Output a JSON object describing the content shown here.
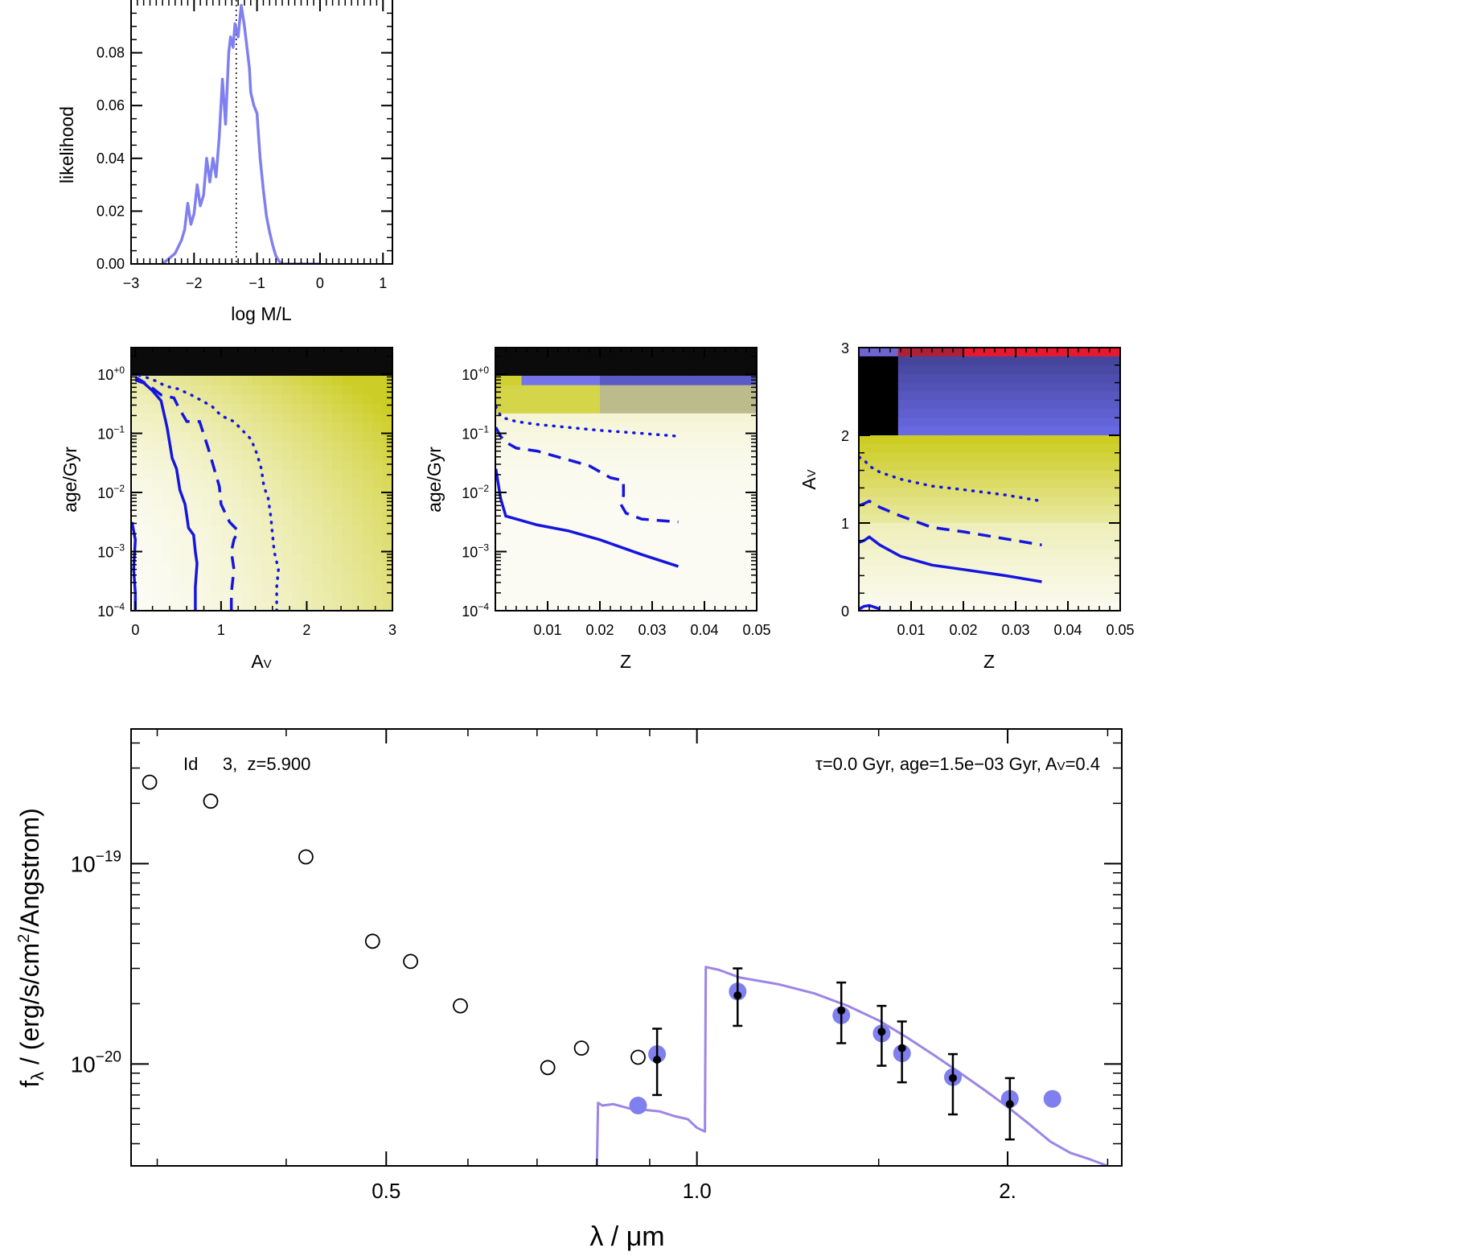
{
  "colors": {
    "pdf_line": "#7f7fef",
    "contour": "#1515df",
    "model_sed": "#9c85e6",
    "model_points": "#7f7fef",
    "observed": "#000000",
    "heat_light": "#fbfbf3",
    "heat_yellow": "#c8c810",
    "heat_blue": "#6a6ae6",
    "heat_red": "#e8182e",
    "heat_black": "#0b0b0b"
  },
  "chart_data": [
    {
      "type": "line",
      "id": "mlpdf",
      "xlabel": "log M/L",
      "ylabel": "likelihood",
      "xlim": [
        -3,
        1.15
      ],
      "ylim": [
        0,
        0.1
      ],
      "xticks": [
        "−3",
        "−2",
        "−1",
        "0",
        "1"
      ],
      "xtick_values": [
        -3,
        -2,
        -1,
        0,
        1
      ],
      "yticks": [
        "0.00",
        "0.02",
        "0.04",
        "0.06",
        "0.08"
      ],
      "ytick_values": [
        0,
        0.02,
        0.04,
        0.06,
        0.08
      ],
      "dotted_marker_x": -1.33,
      "series": [
        {
          "x": [
            -2.5,
            -2.4,
            -2.3,
            -2.2,
            -2.15,
            -2.1,
            -2.05,
            -2.0,
            -1.95,
            -1.9,
            -1.85,
            -1.8,
            -1.75,
            -1.7,
            -1.65,
            -1.6,
            -1.55,
            -1.5,
            -1.45,
            -1.42,
            -1.38,
            -1.35,
            -1.3,
            -1.25,
            -1.2,
            -1.15,
            -1.12,
            -1.1,
            -1.05,
            -1.0,
            -0.95,
            -0.9,
            -0.85,
            -0.8,
            -0.75,
            -0.7,
            -0.65,
            -0.6,
            -0.5,
            -0.3,
            0.0
          ],
          "y": [
            0.0,
            0.002,
            0.004,
            0.009,
            0.013,
            0.023,
            0.015,
            0.019,
            0.03,
            0.022,
            0.026,
            0.04,
            0.031,
            0.04,
            0.033,
            0.048,
            0.07,
            0.053,
            0.08,
            0.086,
            0.082,
            0.091,
            0.086,
            0.098,
            0.09,
            0.08,
            0.074,
            0.065,
            0.06,
            0.057,
            0.04,
            0.028,
            0.018,
            0.012,
            0.007,
            0.003,
            0.001,
            0.0,
            0.0,
            0.0,
            0.0
          ]
        }
      ]
    },
    {
      "type": "heatmap",
      "id": "age_av",
      "xlabel": "A",
      "xlabel_sub": "V",
      "ylabel": "age/Gyr",
      "xlim": [
        -0.05,
        3.0
      ],
      "ylim_log": [
        -4,
        0.45
      ],
      "xticks": [
        "0",
        "1",
        "2",
        "3"
      ],
      "xtick_values": [
        0,
        1,
        2,
        3
      ],
      "yticks": [
        {
          "base": "10",
          "exp": "+0",
          "v": 0
        },
        {
          "base": "10",
          "exp": "−1",
          "v": -1
        },
        {
          "base": "10",
          "exp": "−2",
          "v": -2
        },
        {
          "base": "10",
          "exp": "−3",
          "v": -3
        },
        {
          "base": "10",
          "exp": "−4",
          "v": -4
        }
      ],
      "contours": [
        {
          "style": "solid",
          "x": [
            0.7,
            0.7,
            0.72,
            0.7,
            0.68,
            0.62,
            0.6,
            0.58,
            0.52,
            0.48,
            0.43,
            0.37,
            0.3,
            0.2,
            0.1,
            0.0
          ],
          "y": [
            -4.0,
            -3.6,
            -3.2,
            -3.0,
            -2.72,
            -2.6,
            -2.4,
            -2.2,
            -1.96,
            -1.6,
            -1.42,
            -0.9,
            -0.45,
            -0.28,
            -0.15,
            -0.1
          ]
        },
        {
          "style": "solid",
          "x": [
            0.0,
            0.0,
            -0.02,
            0.0,
            -0.04
          ],
          "y": [
            -4.0,
            -3.7,
            -3.3,
            -2.8,
            -2.5
          ]
        },
        {
          "style": "dashed",
          "x": [
            1.12,
            1.12,
            1.15,
            1.12,
            1.15,
            1.2,
            1.1,
            1.05,
            1.0,
            0.98,
            0.9,
            0.85,
            0.75,
            0.6,
            0.5,
            0.45,
            0.3,
            0.15,
            0.0
          ],
          "y": [
            -4.0,
            -3.7,
            -3.3,
            -3.0,
            -2.8,
            -2.65,
            -2.5,
            -2.35,
            -2.2,
            -1.9,
            -1.5,
            -1.25,
            -0.8,
            -0.8,
            -0.55,
            -0.4,
            -0.35,
            -0.18,
            -0.05
          ]
        },
        {
          "style": "dotted",
          "x": [
            1.65,
            1.65,
            1.67,
            1.62,
            1.6,
            1.58,
            1.55,
            1.5,
            1.47,
            1.42,
            1.35,
            1.25,
            1.15,
            1.0,
            0.9,
            0.78,
            0.65,
            0.5,
            0.35,
            0.25,
            0.12,
            0.0
          ],
          "y": [
            -4.0,
            -3.6,
            -3.3,
            -3.0,
            -2.7,
            -2.4,
            -2.1,
            -1.9,
            -1.6,
            -1.35,
            -1.1,
            -0.95,
            -0.8,
            -0.7,
            -0.55,
            -0.45,
            -0.35,
            -0.25,
            -0.2,
            -0.12,
            -0.05,
            0.0
          ]
        }
      ]
    },
    {
      "type": "heatmap",
      "id": "age_z",
      "xlabel": "Z",
      "ylabel": "age/Gyr",
      "xlim": [
        0.0,
        0.05
      ],
      "ylim_log": [
        -4,
        0.45
      ],
      "xticks": [
        "0.01",
        "0.02",
        "0.03",
        "0.04",
        "0.05"
      ],
      "xtick_values": [
        0.01,
        0.02,
        0.03,
        0.04,
        0.05
      ],
      "yticks": [
        {
          "base": "10",
          "exp": "+0",
          "v": 0
        },
        {
          "base": "10",
          "exp": "−1",
          "v": -1
        },
        {
          "base": "10",
          "exp": "−2",
          "v": -2
        },
        {
          "base": "10",
          "exp": "−3",
          "v": -3
        },
        {
          "base": "10",
          "exp": "−4",
          "v": -4
        }
      ],
      "contours": [
        {
          "style": "solid",
          "x": [
            0.0001,
            0.001,
            0.002,
            0.008,
            0.014,
            0.02,
            0.028,
            0.035
          ],
          "y": [
            -1.6,
            -2.1,
            -2.4,
            -2.55,
            -2.65,
            -2.8,
            -3.05,
            -3.25
          ]
        },
        {
          "style": "dashed",
          "x": [
            0.0001,
            0.001,
            0.002,
            0.004,
            0.008,
            0.014,
            0.018,
            0.02,
            0.022,
            0.0245,
            0.0245,
            0.024,
            0.025,
            0.028,
            0.035
          ],
          "y": [
            -0.9,
            -1.05,
            -1.15,
            -1.25,
            -1.3,
            -1.45,
            -1.55,
            -1.65,
            -1.75,
            -1.8,
            -2.05,
            -2.2,
            -2.35,
            -2.45,
            -2.5
          ]
        },
        {
          "style": "dotted",
          "x": [
            0.0001,
            0.001,
            0.002,
            0.004,
            0.008,
            0.014,
            0.02,
            0.028,
            0.035
          ],
          "y": [
            -0.55,
            -0.7,
            -0.75,
            -0.8,
            -0.85,
            -0.9,
            -0.95,
            -1.0,
            -1.05
          ]
        }
      ]
    },
    {
      "type": "heatmap",
      "id": "av_z",
      "xlabel": "Z",
      "ylabel": "A",
      "ylabel_sub": "V",
      "xlim": [
        0.0,
        0.05
      ],
      "ylim": [
        0,
        3
      ],
      "xticks": [
        "0.01",
        "0.02",
        "0.03",
        "0.04",
        "0.05"
      ],
      "xtick_values": [
        0.01,
        0.02,
        0.03,
        0.04,
        0.05
      ],
      "yticks": [
        "0",
        "1",
        "2",
        "3"
      ],
      "ytick_values": [
        0,
        1,
        2,
        3
      ],
      "contours": [
        {
          "style": "solid",
          "x": [
            0.0001,
            0.001,
            0.002,
            0.004,
            0.008,
            0.014,
            0.02,
            0.028,
            0.035
          ],
          "y": [
            0.78,
            0.8,
            0.84,
            0.75,
            0.62,
            0.52,
            0.47,
            0.4,
            0.33
          ]
        },
        {
          "style": "solid",
          "x": [
            0.0001,
            0.001,
            0.002,
            0.004
          ],
          "y": [
            0.02,
            0.05,
            0.06,
            0.02
          ]
        },
        {
          "style": "dashed",
          "x": [
            0.0001,
            0.001,
            0.002,
            0.004,
            0.008,
            0.014,
            0.02,
            0.028,
            0.035
          ],
          "y": [
            1.2,
            1.22,
            1.25,
            1.18,
            1.08,
            0.95,
            0.9,
            0.82,
            0.75
          ]
        },
        {
          "style": "dotted",
          "x": [
            0.0001,
            0.001,
            0.002,
            0.004,
            0.008,
            0.014,
            0.02,
            0.028,
            0.035
          ],
          "y": [
            1.75,
            1.72,
            1.65,
            1.58,
            1.5,
            1.42,
            1.38,
            1.32,
            1.25
          ]
        }
      ]
    },
    {
      "type": "scatter",
      "id": "sed",
      "xlabel": "λ / μm",
      "ylabel_main": "f",
      "ylabel_sub": "λ",
      "ylabel_rest": " / (erg/s/cm",
      "ylabel_sup": "2",
      "ylabel_end": "/Angstrom)",
      "log_axes": true,
      "xlim": [
        0.283,
        2.58
      ],
      "ylim": [
        3.1e-21,
        4.7e-19
      ],
      "xticks": [
        "0.5",
        "1.0",
        "2."
      ],
      "xtick_values": [
        0.5,
        1.0,
        2.0
      ],
      "yticks": [
        {
          "base": "10",
          "exp": "−19",
          "v": 1e-19
        },
        {
          "base": "10",
          "exp": "−20",
          "v": 1e-20
        }
      ],
      "annotation_left": "Id     3,  z=5.900",
      "annotation_right_parts": [
        "τ=0.0 Gyr, age=1.5e−03 Gyr, A",
        "V",
        "=0.4"
      ],
      "open_circles": {
        "x": [
          0.295,
          0.338,
          0.418,
          0.485,
          0.528,
          0.59,
          0.717,
          0.773,
          0.877
        ],
        "y": [
          2.55e-19,
          2.05e-19,
          1.08e-19,
          4.1e-20,
          3.25e-20,
          1.95e-20,
          9.6e-21,
          1.2e-20,
          1.08e-20
        ]
      },
      "model_points": {
        "x": [
          0.877,
          0.915,
          1.095,
          1.38,
          1.51,
          1.58,
          1.77,
          2.01,
          2.21
        ],
        "y": [
          6.2e-21,
          1.12e-20,
          2.3e-20,
          1.75e-20,
          1.42e-20,
          1.13e-20,
          8.6e-21,
          6.7e-21,
          6.7e-21
        ]
      },
      "observed": {
        "x": [
          0.915,
          1.095,
          1.38,
          1.51,
          1.58,
          1.77,
          2.01
        ],
        "y": [
          1.05e-20,
          2.2e-20,
          1.85e-20,
          1.45e-20,
          1.2e-20,
          8.5e-21,
          6.3e-21
        ],
        "y_low": [
          7e-21,
          1.55e-20,
          1.27e-20,
          9.8e-21,
          8.1e-21,
          5.6e-21,
          4.2e-21
        ],
        "y_high": [
          1.5e-20,
          3e-20,
          2.55e-20,
          1.95e-20,
          1.63e-20,
          1.12e-20,
          8.5e-21
        ]
      },
      "model_sed": {
        "x": [
          0.8,
          0.802,
          0.81,
          0.83,
          0.86,
          0.89,
          0.92,
          0.95,
          0.98,
          1.0,
          1.018,
          1.02,
          1.05,
          1.1,
          1.2,
          1.3,
          1.4,
          1.5,
          1.6,
          1.7,
          1.8,
          1.9,
          2.0,
          2.1,
          2.2,
          2.3,
          2.4,
          2.5
        ],
        "y": [
          3.1e-21,
          6.4e-21,
          6.2e-21,
          6.3e-21,
          6e-21,
          5.9e-21,
          5.8e-21,
          5.5e-21,
          5.3e-21,
          4.8e-21,
          4.6e-21,
          3.05e-20,
          2.95e-20,
          2.7e-20,
          2.5e-20,
          2.25e-20,
          1.95e-20,
          1.65e-20,
          1.35e-20,
          1.1e-20,
          9e-21,
          7.4e-21,
          6.1e-21,
          5e-21,
          4.1e-21,
          3.6e-21,
          3.35e-21,
          3.1e-21
        ]
      }
    }
  ]
}
